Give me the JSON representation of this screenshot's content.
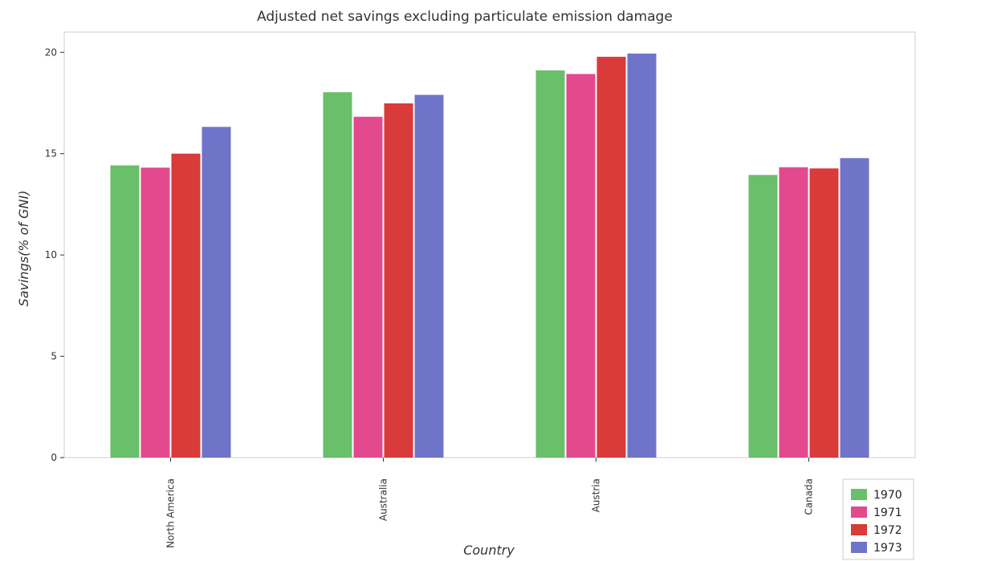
{
  "chart_data": {
    "type": "bar",
    "title": "Adjusted net savings excluding particulate emission damage",
    "xlabel": "Country",
    "ylabel": "Savings(% of GNI)",
    "categories": [
      "North America",
      "Australia",
      "Austria",
      "Canada"
    ],
    "ylim": [
      0,
      21
    ],
    "yticks": [
      0,
      5,
      10,
      15,
      20
    ],
    "series": [
      {
        "name": "1970",
        "color": "#6abf6a",
        "values": [
          14.42,
          18.03,
          19.11,
          13.95
        ]
      },
      {
        "name": "1971",
        "color": "#e34a8e",
        "values": [
          14.31,
          16.82,
          18.93,
          14.33
        ]
      },
      {
        "name": "1972",
        "color": "#d93a3a",
        "values": [
          15.0,
          17.48,
          19.78,
          14.27
        ]
      },
      {
        "name": "1973",
        "color": "#6f74c9",
        "values": [
          16.32,
          17.9,
          19.94,
          14.78
        ]
      }
    ],
    "legend_position": "bottom-right",
    "grid": false
  }
}
